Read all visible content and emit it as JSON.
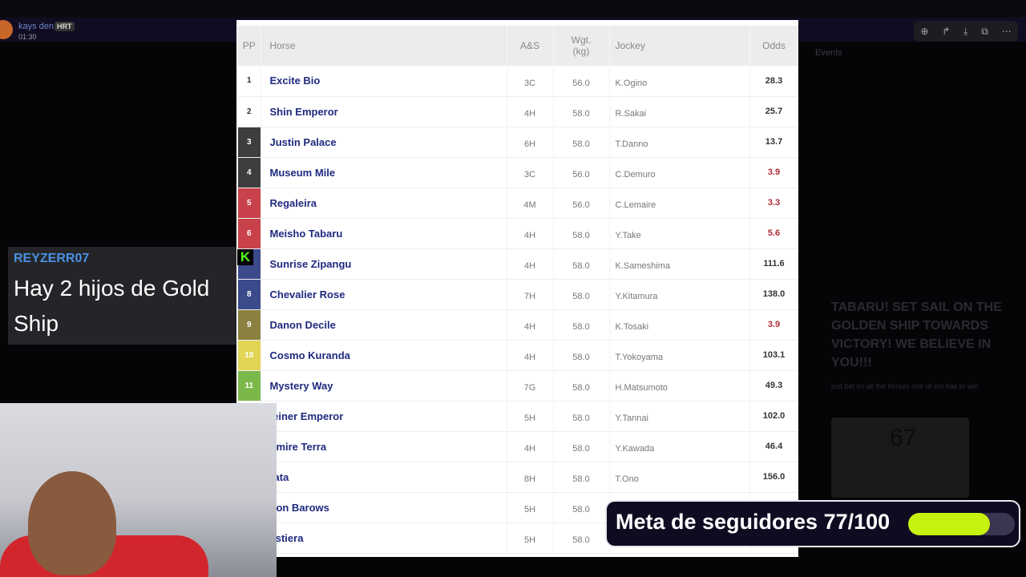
{
  "background": {
    "user": "kays den",
    "badge": "HRT",
    "time": "01:30",
    "toolbar_icons": [
      "zoom-in-icon",
      "forward-icon",
      "download-icon",
      "open-external-icon",
      "more-icon"
    ],
    "events_label": "Events",
    "big_message": "TABARU! SET SAIL ON THE GOLDEN SHIP TOWARDS VICTORY! WE BELIEVE IN YOU!!!",
    "small_message": "just bet on all the horses one of em has to win",
    "card_number": "67"
  },
  "table": {
    "headers": {
      "pp": "PP",
      "horse": "Horse",
      "as": "A&S",
      "wgt": "Wgt. (kg)",
      "jockey": "Jockey",
      "odds": "Odds"
    },
    "rows": [
      {
        "pp": "1",
        "color": "#ffffff",
        "horse": "Excite Bio",
        "as": "3C",
        "wgt": "56.0",
        "jockey": "K.Ogino",
        "odds": "28.3",
        "fav": false
      },
      {
        "pp": "2",
        "color": "#ffffff",
        "horse": "Shin Emperor",
        "as": "4H",
        "wgt": "58.0",
        "jockey": "R.Sakai",
        "odds": "25.7",
        "fav": false
      },
      {
        "pp": "3",
        "color": "#3e3e3e",
        "horse": "Justin Palace",
        "as": "6H",
        "wgt": "58.0",
        "jockey": "T.Danno",
        "odds": "13.7",
        "fav": false
      },
      {
        "pp": "4",
        "color": "#3e3e3e",
        "horse": "Museum Mile",
        "as": "3C",
        "wgt": "56.0",
        "jockey": "C.Demuro",
        "odds": "3.9",
        "fav": true
      },
      {
        "pp": "5",
        "color": "#c9414a",
        "horse": "Regaleira",
        "as": "4M",
        "wgt": "56.0",
        "jockey": "C.Lemaire",
        "odds": "3.3",
        "fav": true
      },
      {
        "pp": "6",
        "color": "#c9414a",
        "horse": "Meisho Tabaru",
        "as": "4H",
        "wgt": "58.0",
        "jockey": "Y.Take",
        "odds": "5.6",
        "fav": true
      },
      {
        "pp": "",
        "color": "#3b4a8a",
        "horse": "Sunrise Zipangu",
        "as": "4H",
        "wgt": "58.0",
        "jockey": "K.Sameshima",
        "odds": "111.6",
        "fav": false
      },
      {
        "pp": "8",
        "color": "#3b4a8a",
        "horse": "Chevalier Rose",
        "as": "7H",
        "wgt": "58.0",
        "jockey": "Y.Kitamura",
        "odds": "138.0",
        "fav": false
      },
      {
        "pp": "9",
        "color": "#8a8040",
        "horse": "Danon Decile",
        "as": "4H",
        "wgt": "58.0",
        "jockey": "K.Tosaki",
        "odds": "3.9",
        "fav": true
      },
      {
        "pp": "10",
        "color": "#e2d455",
        "horse": "Cosmo Kuranda",
        "as": "4H",
        "wgt": "58.0",
        "jockey": "T.Yokoyama",
        "odds": "103.1",
        "fav": false
      },
      {
        "pp": "11",
        "color": "#7bb84a",
        "horse": "Mystery Way",
        "as": "7G",
        "wgt": "58.0",
        "jockey": "H.Matsumoto",
        "odds": "49.3",
        "fav": false
      },
      {
        "pp": "",
        "color": "#ffffff",
        "horse": "leiner Emperor",
        "as": "5H",
        "wgt": "58.0",
        "jockey": "Y.Tannai",
        "odds": "102.0",
        "fav": false
      },
      {
        "pp": "",
        "color": "#ffffff",
        "horse": "dmire Terra",
        "as": "4H",
        "wgt": "58.0",
        "jockey": "Y.Kawada",
        "odds": "46.4",
        "fav": false
      },
      {
        "pp": "",
        "color": "#ffffff",
        "horse": "rata",
        "as": "8H",
        "wgt": "58.0",
        "jockey": "T.Ono",
        "odds": "156.0",
        "fav": false
      },
      {
        "pp": "",
        "color": "#ffffff",
        "horse": "lton Barows",
        "as": "5H",
        "wgt": "58.0",
        "jockey": "",
        "odds": "",
        "fav": false
      },
      {
        "pp": "",
        "color": "#ffffff",
        "horse": "astiera",
        "as": "5H",
        "wgt": "58.0",
        "jockey": "",
        "odds": "",
        "fav": false
      }
    ]
  },
  "chat_overlay": {
    "username": "REYZERR07",
    "message": "Hay 2 hijos de Gold Ship",
    "platform_icon": "kick-icon"
  },
  "follower_goal": {
    "label": "Meta de seguidores 77/100",
    "current": 77,
    "target": 100,
    "bar_color": "#c6f20f"
  }
}
